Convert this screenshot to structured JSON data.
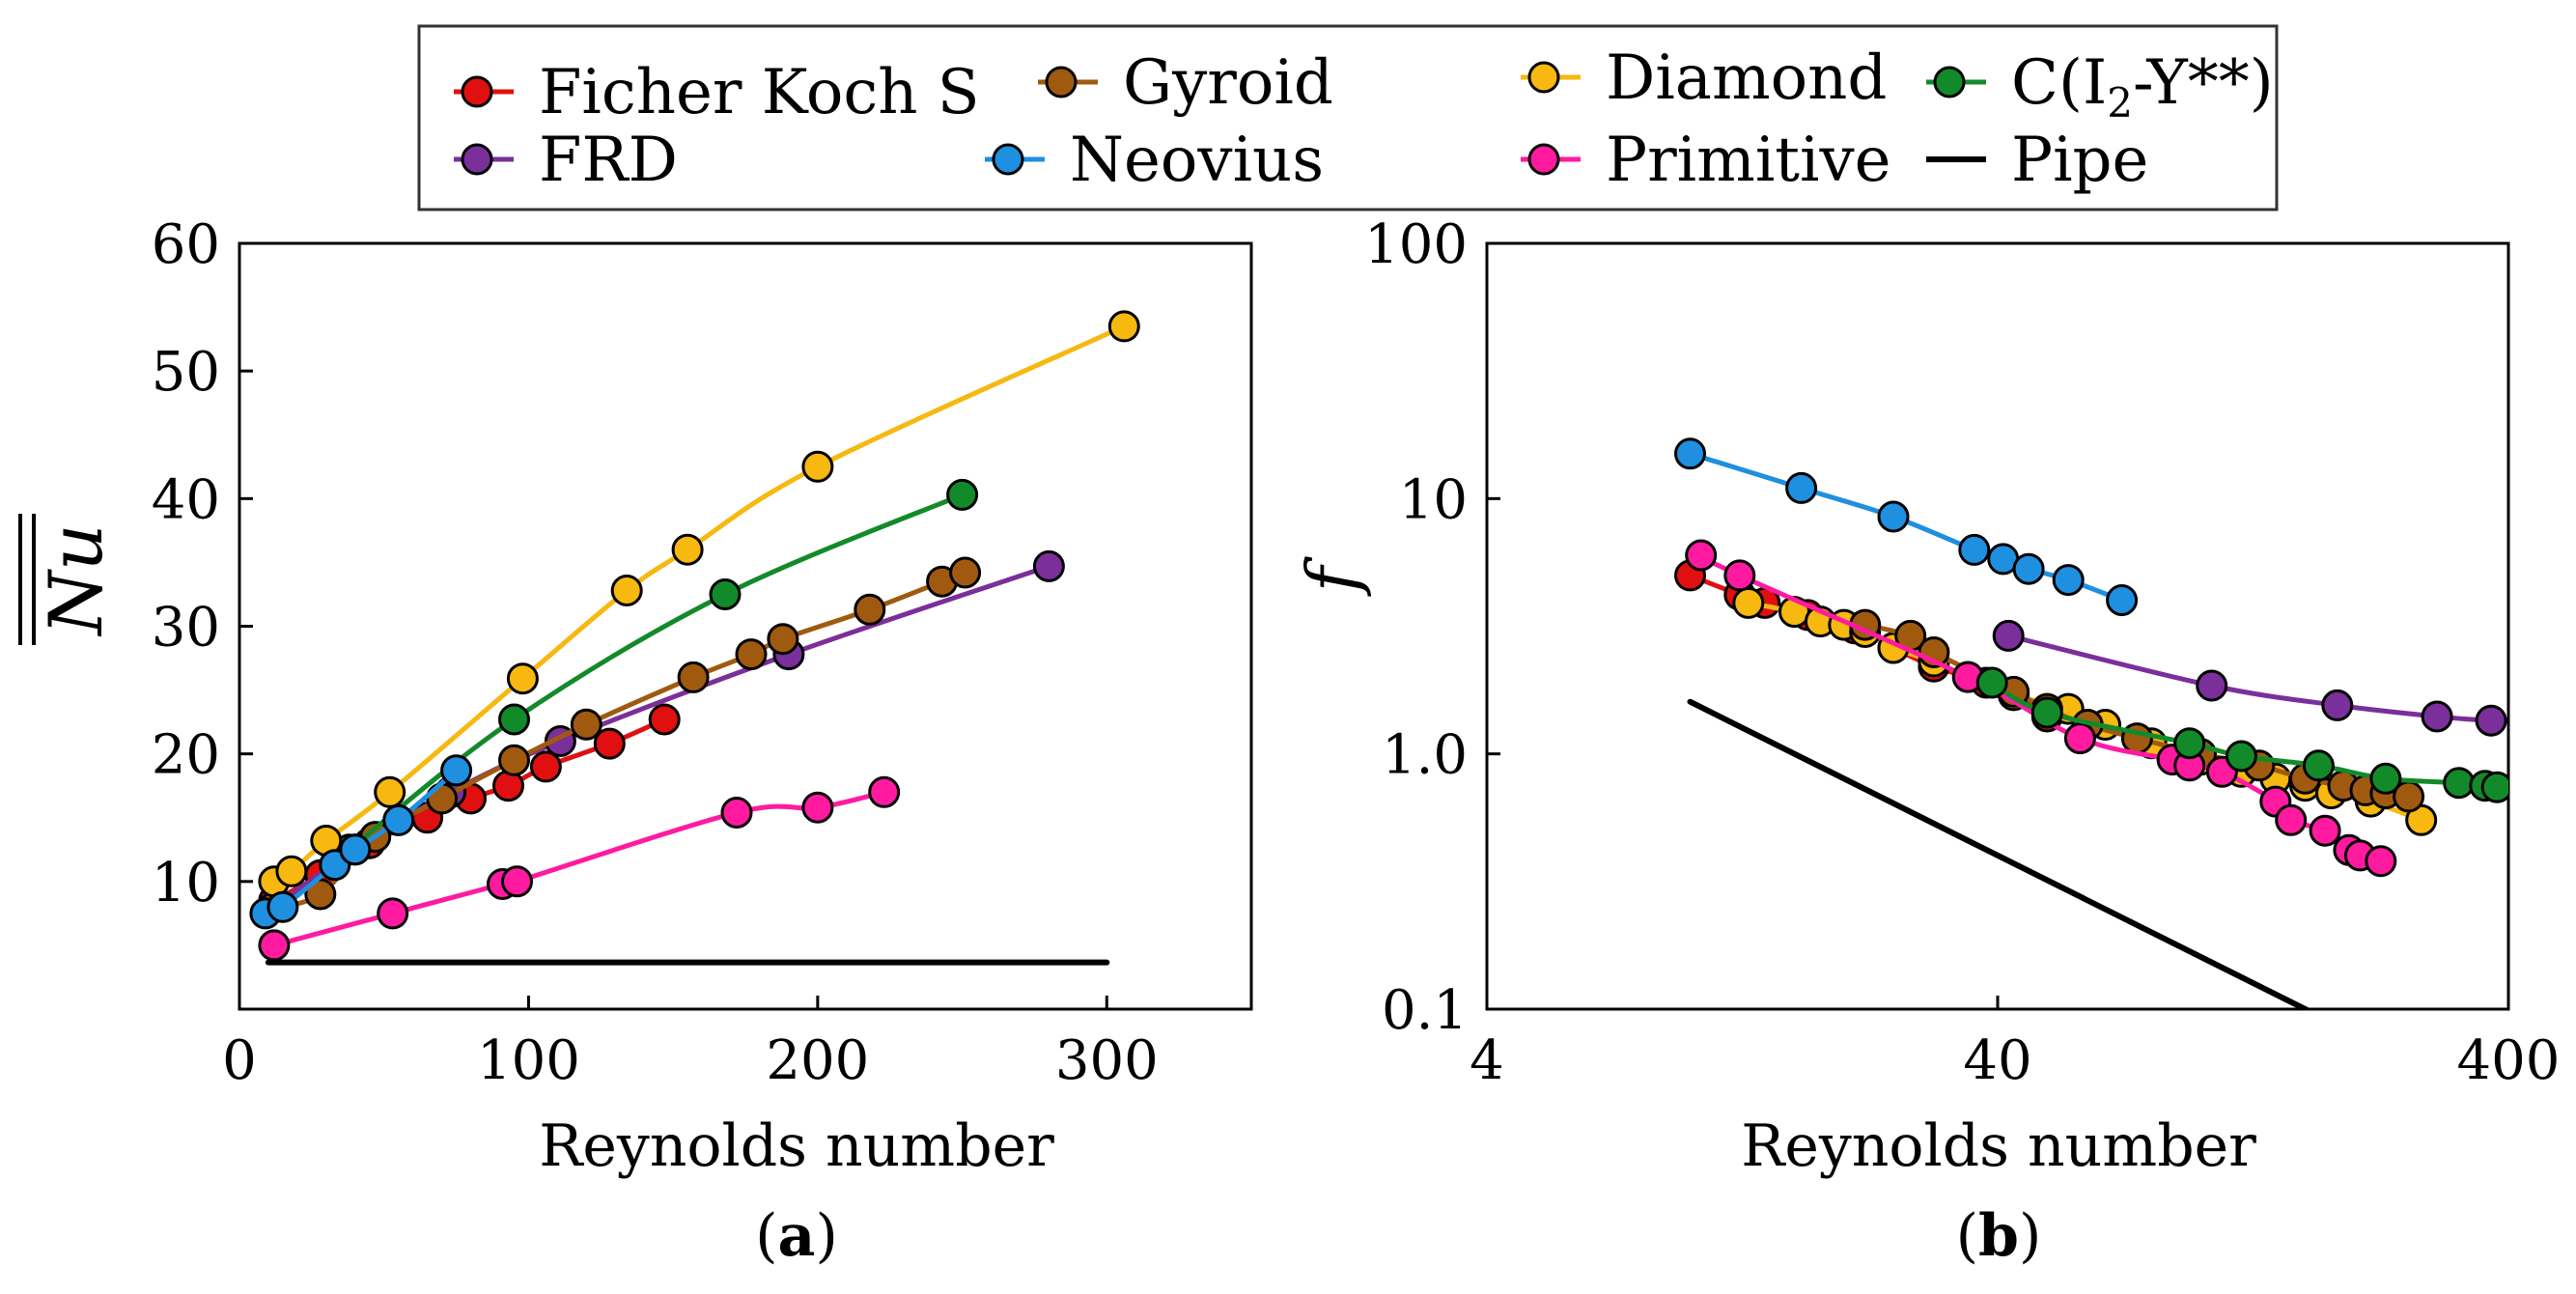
{
  "legend": {
    "entries": [
      {
        "key": "ficher",
        "label": "Ficher Koch S",
        "color": "#e01010"
      },
      {
        "key": "frd",
        "label": "FRD",
        "color": "#7a2f9a"
      },
      {
        "key": "gyroid",
        "label": "Gyroid",
        "color": "#a05a10"
      },
      {
        "key": "neovius",
        "label": "Neovius",
        "color": "#1f8fe0"
      },
      {
        "key": "diamond",
        "label": "Diamond",
        "color": "#f7b80f"
      },
      {
        "key": "primitive",
        "label": "Primitive",
        "color": "#ff1aa0"
      },
      {
        "key": "cI2y",
        "label": "C(I",
        "subscript": "2",
        "label_suffix": "-Y**)",
        "color": "#138a2a"
      },
      {
        "key": "pipe",
        "label": "Pipe",
        "color": "#000000"
      }
    ]
  },
  "chart_data": [
    {
      "type": "line",
      "panel_label": {
        "open": "(",
        "letter": "a",
        "close": ")"
      },
      "xlabel": "Reynolds number",
      "ylabel": {
        "text": "Nu",
        "decoration": "double-overline"
      },
      "xlim": [
        0,
        350
      ],
      "ylim": [
        0,
        60
      ],
      "x_scale": "linear",
      "y_scale": "linear",
      "x_ticks": [
        0,
        100,
        200,
        300
      ],
      "x_tick_labels": [
        "0",
        "100",
        "200",
        "300"
      ],
      "y_ticks": [
        10,
        20,
        30,
        40,
        50,
        60
      ],
      "y_tick_labels": [
        "10",
        "20",
        "30",
        "40",
        "50",
        "60"
      ],
      "grid": false,
      "series": [
        {
          "key": "pipe",
          "markers": false,
          "x": [
            10,
            300
          ],
          "y": [
            3.66,
            3.66
          ]
        },
        {
          "key": "primitive",
          "x": [
            12,
            53,
            91,
            96,
            172,
            200,
            223
          ],
          "y": [
            5,
            7.5,
            9.8,
            10,
            15.4,
            15.8,
            17
          ]
        },
        {
          "key": "ficher",
          "x": [
            12,
            28,
            45,
            65,
            80,
            93,
            106,
            128,
            147
          ],
          "y": [
            8.5,
            10.5,
            13,
            15,
            16.5,
            17.5,
            19,
            20.8,
            22.7
          ]
        },
        {
          "key": "frd",
          "x": [
            12,
            40,
            73,
            111,
            190,
            280
          ],
          "y": [
            8,
            12.5,
            17,
            21,
            27.8,
            34.7
          ]
        },
        {
          "key": "gyroid",
          "x": [
            12,
            28,
            47,
            70,
            95,
            120,
            157,
            177,
            188,
            218,
            243,
            251
          ],
          "y": [
            8,
            9,
            13.5,
            16.5,
            19.5,
            22.3,
            26,
            27.8,
            29,
            31.3,
            33.5,
            34.2
          ]
        },
        {
          "key": "cI2y",
          "x": [
            38,
            95,
            168,
            250
          ],
          "y": [
            12.5,
            22.7,
            32.5,
            40.3
          ]
        },
        {
          "key": "diamond",
          "x": [
            12,
            18,
            30,
            52,
            98,
            134,
            155,
            200,
            306
          ],
          "y": [
            10,
            10.8,
            13.2,
            17,
            25.9,
            32.8,
            36,
            42.5,
            53.5
          ]
        },
        {
          "key": "neovius",
          "x": [
            9,
            15,
            33,
            40,
            55,
            75
          ],
          "y": [
            7.5,
            8,
            11.3,
            12.5,
            14.8,
            18.7
          ]
        }
      ]
    },
    {
      "type": "line",
      "panel_label": {
        "open": "(",
        "letter": "b",
        "close": ")"
      },
      "xlabel": "Reynolds number",
      "ylabel": {
        "text": "f",
        "decoration": "italic"
      },
      "xlim": [
        4,
        400
      ],
      "ylim": [
        0.1,
        100
      ],
      "x_scale": "log",
      "y_scale": "log",
      "x_ticks": [
        4,
        40,
        400
      ],
      "x_tick_labels": [
        "4",
        "40",
        "400"
      ],
      "y_ticks": [
        0.1,
        1,
        10,
        100
      ],
      "y_tick_labels": [
        "0.1",
        "1.0",
        "10",
        "100"
      ],
      "grid": false,
      "series": [
        {
          "key": "pipe",
          "markers": false,
          "x": [
            10,
            165
          ],
          "y": [
            1.6,
            0.097
          ]
        },
        {
          "key": "neovius",
          "x": [
            10,
            16.5,
            25,
            36,
            41,
            46,
            55,
            70
          ],
          "y": [
            15,
            11,
            8.5,
            6.3,
            5.8,
            5.3,
            4.8,
            4.0
          ]
        },
        {
          "key": "frd",
          "x": [
            42,
            105,
            185,
            290,
            370
          ],
          "y": [
            2.9,
            1.85,
            1.55,
            1.4,
            1.35
          ]
        },
        {
          "key": "ficher",
          "x": [
            10,
            12.5,
            14,
            17,
            21,
            25,
            30,
            38,
            43,
            50
          ],
          "y": [
            5.0,
            4.2,
            3.9,
            3.5,
            3.1,
            2.6,
            2.2,
            1.9,
            1.7,
            1.4
          ]
        },
        {
          "key": "diamond",
          "x": [
            13,
            16,
            18,
            20,
            22,
            25,
            30,
            35,
            43,
            55,
            65,
            80,
            100,
            120,
            140,
            160,
            180,
            215,
            270
          ],
          "y": [
            3.9,
            3.6,
            3.3,
            3.2,
            3.0,
            2.6,
            2.3,
            2.0,
            1.7,
            1.5,
            1.3,
            1.1,
            0.95,
            0.85,
            0.8,
            0.75,
            0.7,
            0.65,
            0.55
          ]
        },
        {
          "key": "gyroid",
          "x": [
            22,
            27,
            30,
            43,
            50,
            60,
            75,
            100,
            130,
            160,
            190,
            210,
            230,
            255
          ],
          "y": [
            3.2,
            2.9,
            2.5,
            1.75,
            1.5,
            1.3,
            1.15,
            1.0,
            0.9,
            0.8,
            0.75,
            0.72,
            0.7,
            0.68
          ]
        },
        {
          "key": "primitive",
          "x": [
            10.5,
            12.5,
            35,
            58,
            88,
            95,
            110,
            140,
            150,
            175,
            195,
            205,
            225
          ],
          "y": [
            6.0,
            5.0,
            2.0,
            1.15,
            0.95,
            0.9,
            0.85,
            0.65,
            0.55,
            0.5,
            0.42,
            0.4,
            0.38
          ]
        },
        {
          "key": "cI2y",
          "x": [
            39,
            50,
            95,
            120,
            170,
            230,
            320,
            360,
            380
          ],
          "y": [
            1.9,
            1.45,
            1.1,
            0.98,
            0.9,
            0.8,
            0.77,
            0.75,
            0.74
          ]
        }
      ]
    }
  ]
}
